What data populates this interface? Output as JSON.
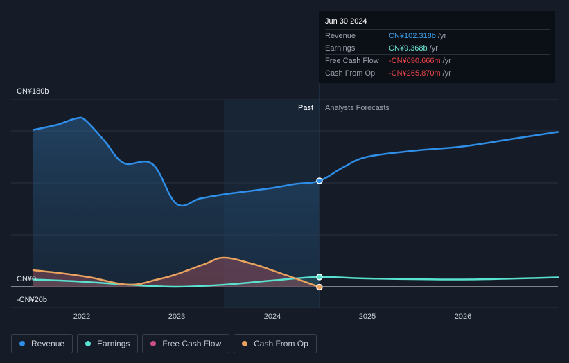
{
  "tooltip": {
    "date": "Jun 30 2024",
    "rows": [
      {
        "label": "Revenue",
        "value": "CN¥102.318b",
        "unit": "/yr",
        "color": "#3ea5f4"
      },
      {
        "label": "Earnings",
        "value": "CN¥9.368b",
        "unit": "/yr",
        "color": "#6ce8d6"
      },
      {
        "label": "Free Cash Flow",
        "value": "-CN¥690.666m",
        "unit": "/yr",
        "color": "#f0454a"
      },
      {
        "label": "Cash From Op",
        "value": "-CN¥265.870m",
        "unit": "/yr",
        "color": "#f0454a"
      }
    ]
  },
  "labels": {
    "past": "Past",
    "forecast": "Analysts Forecasts"
  },
  "legend": [
    {
      "label": "Revenue",
      "color": "#2f8ee8"
    },
    {
      "label": "Earnings",
      "color": "#58e2cf"
    },
    {
      "label": "Free Cash Flow",
      "color": "#c84f8a"
    },
    {
      "label": "Cash From Op",
      "color": "#eaa35f"
    }
  ],
  "chart_data": {
    "type": "line",
    "yticks": [
      "CN¥180b",
      "CN¥0",
      "-CN¥20b"
    ],
    "ylim": [
      -20,
      180
    ],
    "xticks": [
      "2022",
      "2023",
      "2024",
      "2025",
      "2026"
    ],
    "xlim": [
      2021.5,
      2027.0
    ],
    "past_end": 2024.5,
    "highlight_start": 2023.5,
    "series": [
      {
        "name": "Revenue",
        "color": "#2f8ee8",
        "x": [
          2021.5,
          2021.75,
          2021.95,
          2022.05,
          2022.25,
          2022.45,
          2022.75,
          2023.0,
          2023.25,
          2023.5,
          2023.75,
          2024.0,
          2024.25,
          2024.5,
          2024.75,
          2025.0,
          2025.5,
          2026.0,
          2026.5,
          2027.0
        ],
        "y": [
          151,
          156,
          162,
          160,
          140,
          119,
          118,
          80,
          85,
          89,
          92,
          95,
          99,
          102,
          115,
          125,
          131,
          135,
          142,
          149
        ]
      },
      {
        "name": "Earnings",
        "color": "#58e2cf",
        "x": [
          2021.5,
          2022.0,
          2022.5,
          2023.0,
          2023.5,
          2024.0,
          2024.5,
          2025.0,
          2026.0,
          2027.0
        ],
        "y": [
          7,
          5,
          2,
          0,
          2,
          6,
          9.4,
          8,
          7,
          9
        ]
      },
      {
        "name": "Cash From Op",
        "color": "#eaa35f",
        "x": [
          2021.5,
          2021.8,
          2022.1,
          2022.5,
          2022.8,
          2023.0,
          2023.3,
          2023.5,
          2023.8,
          2024.0,
          2024.25,
          2024.5
        ],
        "y": [
          16,
          13,
          9,
          2,
          7,
          12,
          22,
          28,
          22,
          16,
          8,
          -0.3
        ]
      }
    ]
  }
}
